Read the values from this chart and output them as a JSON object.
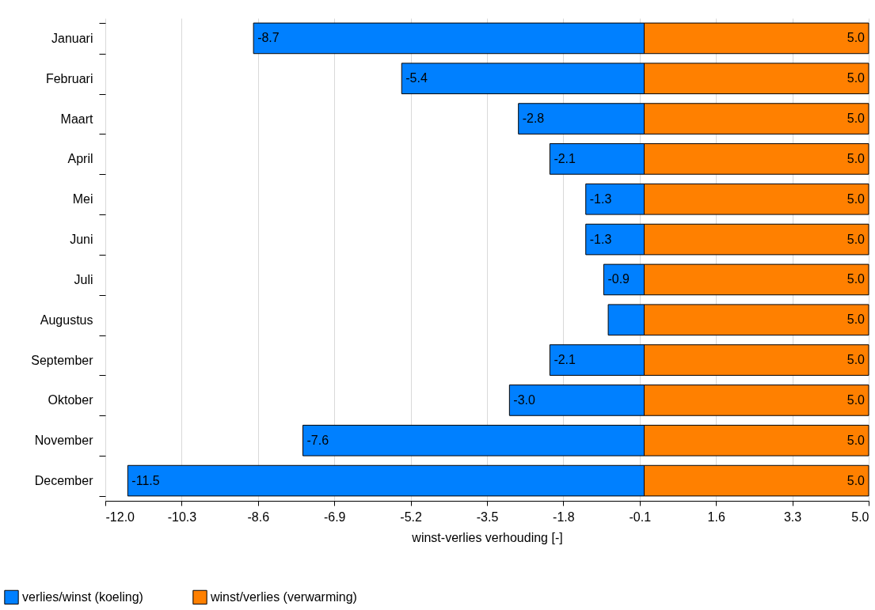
{
  "chart_data": {
    "type": "bar",
    "orientation": "horizontal",
    "stacked": true,
    "categories": [
      "Januari",
      "Februari",
      "Maart",
      "April",
      "Mei",
      "Juni",
      "Juli",
      "Augustus",
      "September",
      "Oktober",
      "November",
      "December"
    ],
    "series": [
      {
        "name": "verlies/winst (koeling)",
        "color": "#0080ff",
        "values": [
          -8.7,
          -5.4,
          -2.8,
          -2.1,
          -1.3,
          -1.3,
          -0.9,
          -0.8,
          -2.1,
          -3.0,
          -7.6,
          -11.5
        ],
        "value_labels": [
          "-8.7",
          "-5.4",
          "-2.8",
          "-2.1",
          "-1.3",
          "-1.3",
          "-0.9",
          null,
          "-2.1",
          "-3.0",
          "-7.6",
          "-11.5"
        ]
      },
      {
        "name": "winst/verlies (verwarming)",
        "color": "#ff8000",
        "values": [
          5.0,
          5.0,
          5.0,
          5.0,
          5.0,
          5.0,
          5.0,
          5.0,
          5.0,
          5.0,
          5.0,
          5.0
        ],
        "value_labels": [
          "5.0",
          "5.0",
          "5.0",
          "5.0",
          "5.0",
          "5.0",
          "5.0",
          "5.0",
          "5.0",
          "5.0",
          "5.0",
          "5.0"
        ]
      }
    ],
    "xlabel": "winst-verlies verhouding [-]",
    "xlim": [
      -12.0,
      5.0
    ],
    "xticks": [
      {
        "value": -12.0,
        "label": "-12.0"
      },
      {
        "value": -10.3,
        "label": "-10.3"
      },
      {
        "value": -8.6,
        "label": "-8.6"
      },
      {
        "value": -6.9,
        "label": "-6.9"
      },
      {
        "value": -5.2,
        "label": "-5.2"
      },
      {
        "value": -3.5,
        "label": "-3.5"
      },
      {
        "value": -1.8,
        "label": "-1.8"
      },
      {
        "value": -0.1,
        "label": "-0.1"
      },
      {
        "value": 1.6,
        "label": "1.6"
      },
      {
        "value": 3.3,
        "label": "3.3"
      },
      {
        "value": 5.0,
        "label": "5.0"
      }
    ],
    "grid": "x",
    "legend": "bottom left"
  }
}
